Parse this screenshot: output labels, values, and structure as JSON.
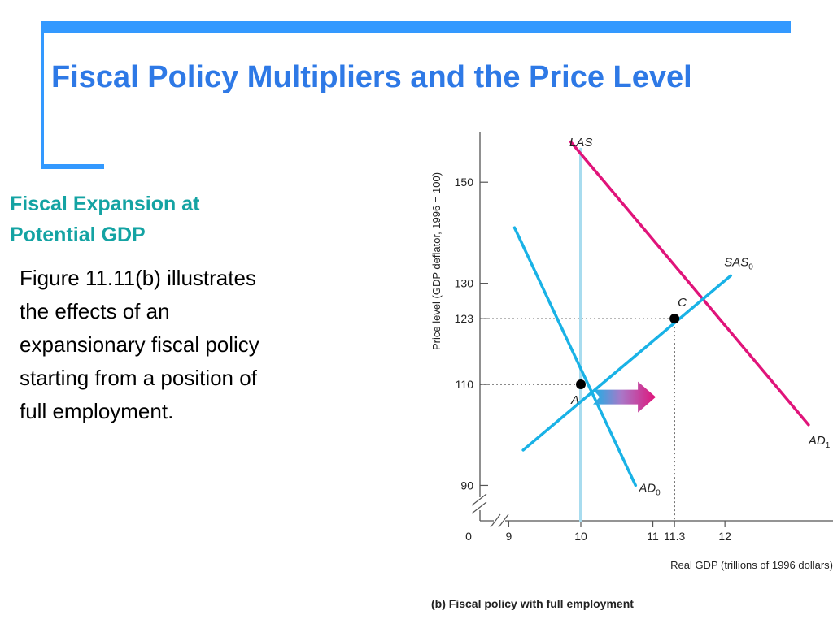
{
  "slide": {
    "title": "Fiscal Policy Multipliers and the Price Level",
    "subtitle": "Fiscal Expansion at Potential GDP",
    "body": "Figure 11.11(b) illustrates the effects of an expansionary fiscal policy starting from a position of full employment."
  },
  "colors": {
    "accent_bar": "#3399ff",
    "title": "#2e79e6",
    "subtitle": "#14a3a3",
    "curve_blue": "#19b2e6",
    "curve_magenta": "#e0147a",
    "las_line": "#a8dcef"
  },
  "chart_data": {
    "type": "line",
    "title": "",
    "caption": "(b) Fiscal policy with full employment",
    "xlabel": "Real GDP (trillions of 1996 dollars)",
    "ylabel": "Price level (GDP deflator, 1996 = 100)",
    "x_ticks": [
      9,
      10,
      11,
      11.3,
      12
    ],
    "x_tick_labels": [
      "9",
      "10",
      "11",
      "11.3",
      "12"
    ],
    "y_ticks": [
      90,
      110,
      123,
      130,
      150
    ],
    "y_tick_labels": [
      "90",
      "110",
      "123",
      "130",
      "150"
    ],
    "origin_label": "0",
    "xlim": [
      8.6,
      13.5
    ],
    "ylim": [
      83,
      160
    ],
    "axis_breaks": true,
    "grid": false,
    "series": [
      {
        "name": "LAS",
        "key": "las",
        "color": "#a8dcef",
        "points": [
          [
            10,
            156.5
          ],
          [
            10,
            83
          ]
        ]
      },
      {
        "name": "AD",
        "sub": "1",
        "key": "ad1",
        "color": "#e0147a",
        "points": [
          [
            9.86,
            158
          ],
          [
            13.16,
            102
          ]
        ]
      },
      {
        "name": "AD",
        "sub": "0",
        "key": "ad0",
        "color": "#19b2e6",
        "points": [
          [
            9.08,
            141
          ],
          [
            10.76,
            90
          ]
        ]
      },
      {
        "name": "SAS",
        "sub": "0",
        "key": "sas0",
        "color": "#19b2e6",
        "points": [
          [
            9.2,
            97
          ],
          [
            12.08,
            131.5
          ]
        ]
      }
    ],
    "points": [
      {
        "label": "A",
        "x": 10,
        "y": 110
      },
      {
        "label": "C",
        "x": 11.3,
        "y": 123
      }
    ],
    "shift_arrow": {
      "from": [
        10.17,
        107.5
      ],
      "to": [
        11.04,
        107.5
      ]
    }
  }
}
